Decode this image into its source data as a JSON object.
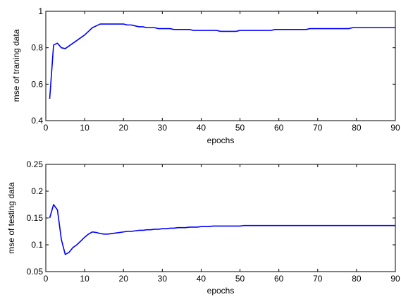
{
  "chart_data": [
    {
      "type": "line",
      "xlabel": "epochs",
      "ylabel": "mse of traning data",
      "xlim": [
        0,
        90
      ],
      "ylim": [
        0.4,
        1
      ],
      "xticks": [
        "0",
        "10",
        "20",
        "30",
        "40",
        "50",
        "60",
        "70",
        "80",
        "90"
      ],
      "yticks": [
        "0.4",
        "0.6",
        "0.8",
        "1"
      ],
      "grid": false,
      "line_color": "#0000ff",
      "series": [
        {
          "x": [
            1,
            2,
            3,
            4,
            5,
            6,
            7,
            8,
            9,
            10,
            11,
            12,
            13,
            14,
            15,
            16,
            17,
            18,
            19,
            20,
            21,
            22,
            23,
            24,
            25,
            26,
            27,
            28,
            29,
            30,
            31,
            32,
            33,
            34,
            35,
            36,
            37,
            38,
            39,
            40,
            41,
            42,
            43,
            44,
            45,
            46,
            47,
            48,
            49,
            50,
            51,
            52,
            53,
            54,
            55,
            56,
            57,
            58,
            59,
            60,
            61,
            62,
            63,
            64,
            65,
            66,
            67,
            68,
            69,
            70,
            71,
            72,
            73,
            74,
            75,
            76,
            77,
            78,
            79,
            80,
            81,
            82,
            83,
            84,
            85,
            86,
            87,
            88,
            89,
            90
          ],
          "y": [
            0.52,
            0.815,
            0.825,
            0.8,
            0.795,
            0.81,
            0.825,
            0.84,
            0.855,
            0.87,
            0.89,
            0.91,
            0.92,
            0.93,
            0.93,
            0.93,
            0.93,
            0.93,
            0.93,
            0.93,
            0.925,
            0.925,
            0.92,
            0.915,
            0.915,
            0.91,
            0.91,
            0.91,
            0.905,
            0.905,
            0.905,
            0.905,
            0.9,
            0.9,
            0.9,
            0.9,
            0.9,
            0.895,
            0.895,
            0.895,
            0.895,
            0.895,
            0.895,
            0.895,
            0.89,
            0.89,
            0.89,
            0.89,
            0.89,
            0.895,
            0.895,
            0.895,
            0.895,
            0.895,
            0.895,
            0.895,
            0.895,
            0.895,
            0.9,
            0.9,
            0.9,
            0.9,
            0.9,
            0.9,
            0.9,
            0.9,
            0.9,
            0.905,
            0.905,
            0.905,
            0.905,
            0.905,
            0.905,
            0.905,
            0.905,
            0.905,
            0.905,
            0.905,
            0.91,
            0.91,
            0.91,
            0.91,
            0.91,
            0.91,
            0.91,
            0.91,
            0.91,
            0.91,
            0.91,
            0.91
          ]
        }
      ]
    },
    {
      "type": "line",
      "xlabel": "epochs",
      "ylabel": "mse of testing data",
      "xlim": [
        0,
        90
      ],
      "ylim": [
        0.05,
        0.25
      ],
      "xticks": [
        "0",
        "10",
        "20",
        "30",
        "40",
        "50",
        "60",
        "70",
        "80",
        "90"
      ],
      "yticks": [
        "0.05",
        "0.1",
        "0.15",
        "0.2",
        "0.25"
      ],
      "grid": false,
      "line_color": "#0000ff",
      "series": [
        {
          "x": [
            1,
            2,
            3,
            4,
            5,
            6,
            7,
            8,
            9,
            10,
            11,
            12,
            13,
            14,
            15,
            16,
            17,
            18,
            19,
            20,
            21,
            22,
            23,
            24,
            25,
            26,
            27,
            28,
            29,
            30,
            31,
            32,
            33,
            34,
            35,
            36,
            37,
            38,
            39,
            40,
            41,
            42,
            43,
            44,
            45,
            46,
            47,
            48,
            49,
            50,
            51,
            52,
            53,
            54,
            55,
            56,
            57,
            58,
            59,
            60,
            61,
            62,
            63,
            64,
            65,
            66,
            67,
            68,
            69,
            70,
            71,
            72,
            73,
            74,
            75,
            76,
            77,
            78,
            79,
            80,
            81,
            82,
            83,
            84,
            85,
            86,
            87,
            88,
            89,
            90
          ],
          "y": [
            0.15,
            0.175,
            0.165,
            0.11,
            0.082,
            0.086,
            0.095,
            0.1,
            0.107,
            0.114,
            0.12,
            0.124,
            0.123,
            0.121,
            0.12,
            0.12,
            0.121,
            0.122,
            0.123,
            0.124,
            0.125,
            0.125,
            0.126,
            0.127,
            0.127,
            0.128,
            0.128,
            0.129,
            0.129,
            0.13,
            0.13,
            0.131,
            0.131,
            0.132,
            0.132,
            0.132,
            0.133,
            0.133,
            0.133,
            0.134,
            0.134,
            0.134,
            0.135,
            0.135,
            0.135,
            0.135,
            0.135,
            0.135,
            0.135,
            0.135,
            0.136,
            0.136,
            0.136,
            0.136,
            0.136,
            0.136,
            0.136,
            0.136,
            0.136,
            0.136,
            0.136,
            0.136,
            0.136,
            0.136,
            0.136,
            0.136,
            0.136,
            0.136,
            0.136,
            0.136,
            0.136,
            0.136,
            0.136,
            0.136,
            0.136,
            0.136,
            0.136,
            0.136,
            0.136,
            0.136,
            0.136,
            0.136,
            0.136,
            0.136,
            0.136,
            0.136,
            0.136,
            0.136,
            0.136,
            0.136
          ]
        }
      ]
    }
  ]
}
